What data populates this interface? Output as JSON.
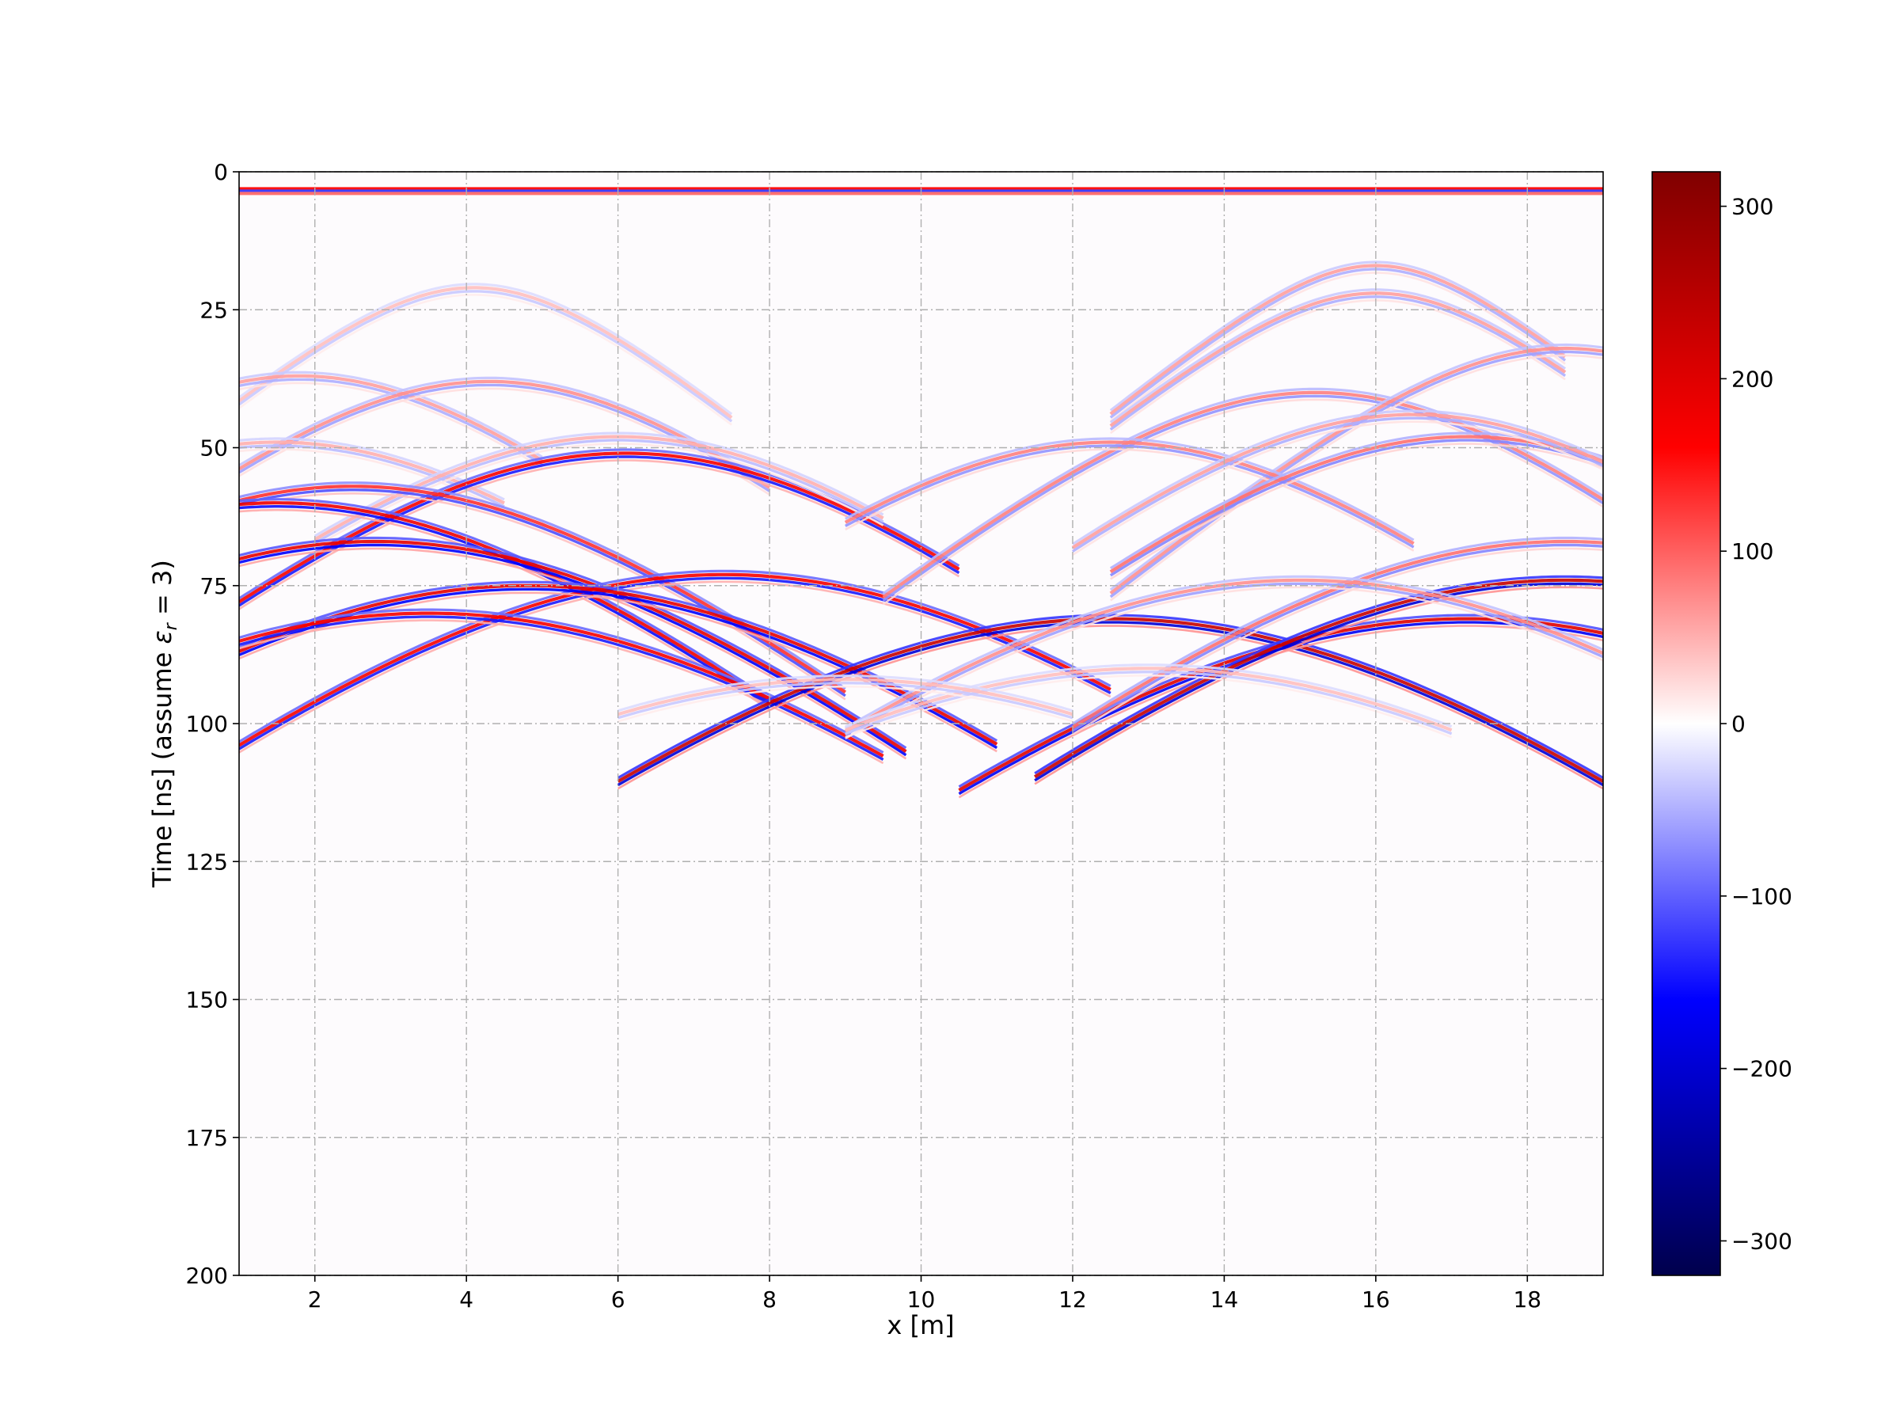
{
  "chart_data": {
    "type": "heatmap",
    "title": "",
    "xlabel": "x [m]",
    "ylabel_text": "Time [ns] (assume ",
    "ylabel_symbol": "ε",
    "ylabel_subscript": "r",
    "ylabel_suffix": " = 3)",
    "xlim": [
      1.0,
      19.0
    ],
    "ylim": [
      200,
      0
    ],
    "y_inverted": true,
    "xticks": [
      2,
      4,
      6,
      8,
      10,
      12,
      14,
      16,
      18
    ],
    "xtick_labels": [
      "2",
      "4",
      "6",
      "8",
      "10",
      "12",
      "14",
      "16",
      "18"
    ],
    "yticks": [
      0,
      25,
      50,
      75,
      100,
      125,
      150,
      175,
      200
    ],
    "ytick_labels": [
      "0",
      "25",
      "50",
      "75",
      "100",
      "125",
      "150",
      "175",
      "200"
    ],
    "grid": true,
    "colormap": "seismic",
    "colormap_stops": [
      "#00004c",
      "#0000ff",
      "#ffffff",
      "#ff0000",
      "#800000"
    ],
    "clim": [
      -320,
      320
    ],
    "colorbar_ticks": [
      300,
      200,
      100,
      0,
      -100,
      -200,
      -300
    ],
    "colorbar_tick_labels": [
      "300",
      "200",
      "100",
      "0",
      "−100",
      "−200",
      "−300"
    ],
    "direct_wave": {
      "t": 3.5,
      "amplitude": 150
    },
    "hyperbolas": [
      {
        "x0": 4.1,
        "t0": 21,
        "amp": 40,
        "xmin": 1.0,
        "xmax": 7.5
      },
      {
        "x0": 1.8,
        "t0": 37,
        "amp": 60,
        "xmin": 1.0,
        "xmax": 5.0
      },
      {
        "x0": 4.3,
        "t0": 38,
        "amp": 70,
        "xmin": 1.0,
        "xmax": 8.0
      },
      {
        "x0": 1.5,
        "t0": 49,
        "amp": 50,
        "xmin": 1.0,
        "xmax": 4.5
      },
      {
        "x0": 6.1,
        "t0": 51,
        "amp": 170,
        "xmin": 1.0,
        "xmax": 10.5
      },
      {
        "x0": 6.0,
        "t0": 48,
        "amp": 50,
        "xmin": 2.0,
        "xmax": 9.5
      },
      {
        "x0": 2.5,
        "t0": 57,
        "amp": 130,
        "xmin": 1.0,
        "xmax": 9.0
      },
      {
        "x0": 1.5,
        "t0": 60,
        "amp": 180,
        "xmin": 1.0,
        "xmax": 8.0
      },
      {
        "x0": 2.8,
        "t0": 67,
        "amp": 190,
        "xmin": 1.0,
        "xmax": 9.8
      },
      {
        "x0": 7.4,
        "t0": 73,
        "amp": 170,
        "xmin": 1.0,
        "xmax": 12.5
      },
      {
        "x0": 4.8,
        "t0": 75,
        "amp": 190,
        "xmin": 1.0,
        "xmax": 11.0
      },
      {
        "x0": 3.5,
        "t0": 80,
        "amp": 170,
        "xmin": 1.0,
        "xmax": 9.5
      },
      {
        "x0": 12.5,
        "t0": 81,
        "amp": 230,
        "xmin": 6.0,
        "xmax": 19.0
      },
      {
        "x0": 17.2,
        "t0": 81,
        "amp": 200,
        "xmin": 10.5,
        "xmax": 19.0
      },
      {
        "x0": 18.5,
        "t0": 74,
        "amp": 230,
        "xmin": 11.5,
        "xmax": 19.0
      },
      {
        "x0": 18.5,
        "t0": 67,
        "amp": 90,
        "xmin": 12.0,
        "xmax": 19.0
      },
      {
        "x0": 15.0,
        "t0": 74,
        "amp": 70,
        "xmin": 9.0,
        "xmax": 19.0
      },
      {
        "x0": 15.2,
        "t0": 40,
        "amp": 80,
        "xmin": 9.5,
        "xmax": 19.0
      },
      {
        "x0": 16.0,
        "t0": 17,
        "amp": 60,
        "xmin": 12.5,
        "xmax": 18.5
      },
      {
        "x0": 16.0,
        "t0": 22,
        "amp": 60,
        "xmin": 12.5,
        "xmax": 18.5
      },
      {
        "x0": 18.5,
        "t0": 32,
        "amp": 70,
        "xmin": 12.5,
        "xmax": 19.0
      },
      {
        "x0": 12.5,
        "t0": 49,
        "amp": 80,
        "xmin": 9.0,
        "xmax": 16.5
      },
      {
        "x0": 17.2,
        "t0": 48,
        "amp": 90,
        "xmin": 12.5,
        "xmax": 19.0
      },
      {
        "x0": 16.5,
        "t0": 44,
        "amp": 60,
        "xmin": 12.0,
        "xmax": 19.0
      },
      {
        "x0": 13.0,
        "t0": 90,
        "amp": 40,
        "xmin": 9.0,
        "xmax": 17.0
      },
      {
        "x0": 9.0,
        "t0": 92,
        "amp": 40,
        "xmin": 6.0,
        "xmax": 12.0
      }
    ]
  }
}
